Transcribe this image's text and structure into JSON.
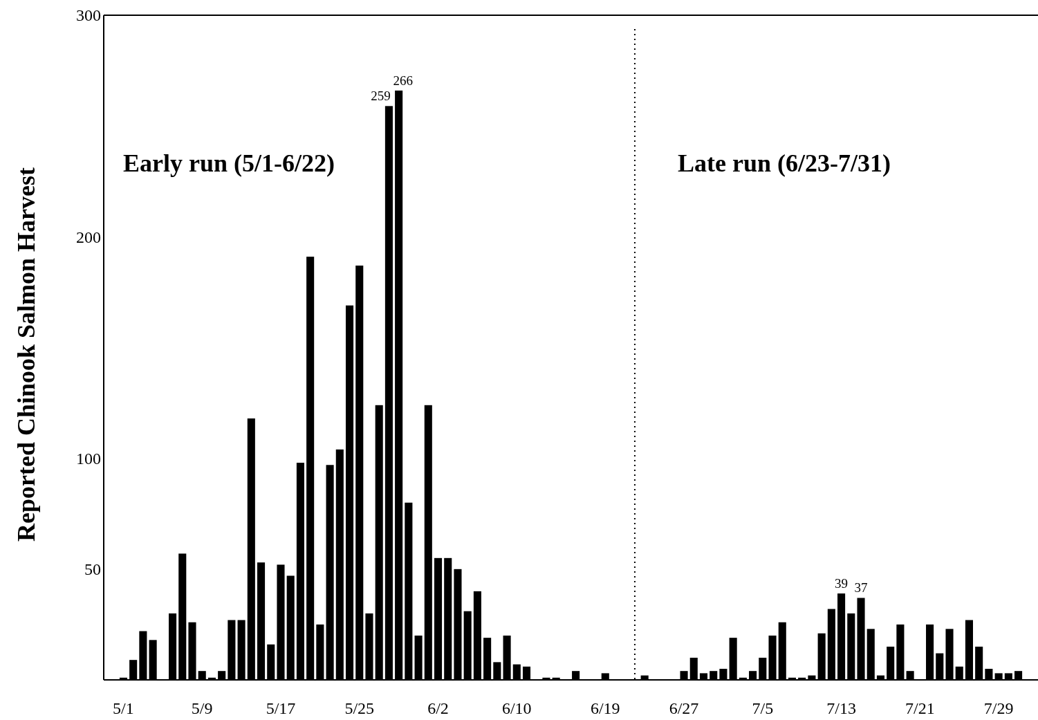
{
  "chart_data": {
    "type": "bar",
    "ylabel": "Reported Chinook Salmon Harvest",
    "annotations": [
      "Early run (5/1-6/22)",
      "Late run (6/23-7/31)"
    ],
    "x": [
      "--05-01",
      "--05-02",
      "--05-03",
      "--05-04",
      "--05-05",
      "--05-06",
      "--05-07",
      "--05-08",
      "--05-09",
      "--05-10",
      "--05-11",
      "--05-12",
      "--05-13",
      "--05-14",
      "--05-15",
      "--05-16",
      "--05-17",
      "--05-18",
      "--05-19",
      "--05-20",
      "--05-21",
      "--05-22",
      "--05-23",
      "--05-24",
      "--05-25",
      "--05-26",
      "--05-27",
      "--05-28",
      "--05-29",
      "--05-30",
      "--05-31",
      "--06-01",
      "--06-02",
      "--06-03",
      "--06-04",
      "--06-05",
      "--06-06",
      "--06-07",
      "--06-08",
      "--06-09",
      "--06-10",
      "--06-11",
      "--06-12",
      "--06-13",
      "--06-14",
      "--06-15",
      "--06-16",
      "--06-17",
      "--06-18",
      "--06-19",
      "--06-20",
      "--06-21",
      "--06-22",
      "--06-23",
      "--06-24",
      "--06-25",
      "--06-26",
      "--06-27",
      "--06-28",
      "--06-29",
      "--06-30",
      "--07-01",
      "--07-02",
      "--07-03",
      "--07-04",
      "--07-05",
      "--07-06",
      "--07-07",
      "--07-08",
      "--07-09",
      "--07-10",
      "--07-11",
      "--07-12",
      "--07-13",
      "--07-14",
      "--07-15",
      "--07-16",
      "--07-17",
      "--07-18",
      "--07-19",
      "--07-20",
      "--07-21",
      "--07-22",
      "--07-23",
      "--07-24",
      "--07-25",
      "--07-26",
      "--07-27",
      "--07-28",
      "--07-29",
      "--07-30",
      "--07-31"
    ],
    "values": [
      1,
      9,
      22,
      18,
      0,
      30,
      57,
      26,
      4,
      1,
      4,
      27,
      27,
      118,
      53,
      16,
      52,
      47,
      98,
      191,
      25,
      97,
      104,
      169,
      187,
      30,
      124,
      259,
      266,
      80,
      20,
      124,
      55,
      55,
      50,
      31,
      40,
      19,
      8,
      20,
      7,
      6,
      0,
      1,
      1,
      0,
      4,
      0,
      0,
      3,
      0,
      0,
      0,
      2,
      0,
      0,
      0,
      4,
      10,
      3,
      4,
      5,
      19,
      1,
      4,
      10,
      20,
      26,
      1,
      1,
      2,
      21,
      32,
      39,
      30,
      37,
      23,
      2,
      15,
      25,
      4,
      0,
      25,
      12,
      23,
      6,
      27,
      15,
      5,
      3,
      3,
      4
    ],
    "value_labels": [
      null,
      null,
      null,
      null,
      null,
      null,
      null,
      null,
      null,
      null,
      null,
      null,
      null,
      null,
      null,
      null,
      null,
      null,
      null,
      null,
      null,
      null,
      null,
      null,
      null,
      null,
      null,
      "259",
      "266",
      null,
      null,
      null,
      null,
      null,
      null,
      null,
      null,
      null,
      null,
      null,
      null,
      null,
      null,
      null,
      null,
      null,
      null,
      null,
      null,
      null,
      null,
      null,
      null,
      null,
      null,
      null,
      null,
      null,
      null,
      null,
      null,
      null,
      null,
      null,
      null,
      null,
      null,
      null,
      null,
      null,
      null,
      null,
      null,
      "39",
      null,
      "37",
      null,
      null,
      null,
      null,
      null,
      null,
      null,
      null,
      null,
      null,
      null,
      null,
      null,
      null,
      null,
      null
    ],
    "color": "#000000",
    "xlim": [
      "--04-29",
      "--08-02"
    ],
    "xticks": [
      {
        "value": "--05-01",
        "label": "5/1"
      },
      {
        "value": "--05-09",
        "label": "5/9"
      },
      {
        "value": "--05-17",
        "label": "5/17"
      },
      {
        "value": "--05-25",
        "label": "5/25"
      },
      {
        "value": "--06-02",
        "label": "6/2"
      },
      {
        "value": "--06-10",
        "label": "6/10"
      },
      {
        "value": "--06-19",
        "label": "6/19"
      },
      {
        "value": "--06-27",
        "label": "6/27"
      },
      {
        "value": "--07-05",
        "label": "7/5"
      },
      {
        "value": "--07-13",
        "label": "7/13"
      },
      {
        "value": "--07-21",
        "label": "7/21"
      },
      {
        "value": "--07-29",
        "label": "7/29"
      }
    ],
    "ylim": [
      0,
      300
    ],
    "yticks": [
      50,
      100,
      200,
      300
    ],
    "ref_lines": [
      {
        "axis": "x",
        "value": "--06-22",
        "color": "#000000",
        "line_style": "dotted"
      }
    ]
  }
}
